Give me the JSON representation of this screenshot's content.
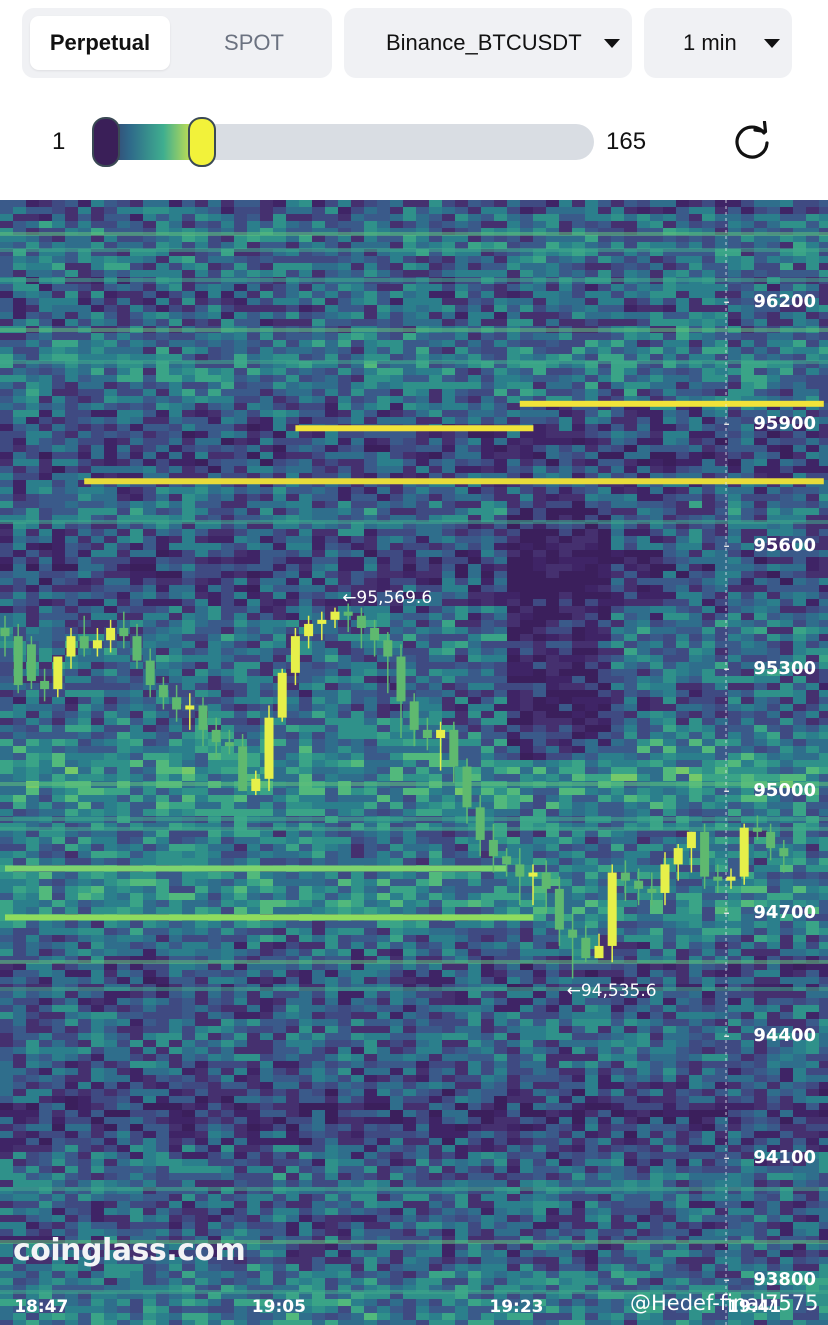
{
  "market_tabs": [
    {
      "label": "Perpetual",
      "selected": true
    },
    {
      "label": "SPOT",
      "selected": false
    }
  ],
  "pair_select": {
    "value": "Binance_BTCUSDT"
  },
  "interval_select": {
    "value": "1 min"
  },
  "range_slider": {
    "min_label": "1",
    "max_label": "165",
    "level": 0.22
  },
  "refresh": {
    "icon": "refresh-icon"
  },
  "chart_data": {
    "type": "heatmap",
    "title": "",
    "y_ticks": [
      "96200",
      "95900",
      "95600",
      "95300",
      "95000",
      "94700",
      "94400",
      "94100",
      "93800"
    ],
    "x_ticks": [
      "18:47",
      "19:05",
      "19:23",
      "19:41"
    ],
    "ylim": [
      93690,
      96450
    ],
    "grid": false,
    "annotations": {
      "high": "←95,569.6",
      "low": "←94,535.6"
    },
    "liquidity_lines": [
      {
        "price": 95950,
        "start": "19:25",
        "end": "19:45",
        "color": "#f1e33a"
      },
      {
        "price": 95890,
        "start": "19:08",
        "end": "19:23",
        "color": "#f1e33a"
      },
      {
        "price": 95760,
        "start": "18:52",
        "end": "19:45",
        "color": "#e8dc3a"
      },
      {
        "price": 94810,
        "start": "18:46",
        "end": "19:21",
        "color": "#7ed46f"
      },
      {
        "price": 94690,
        "start": "18:46",
        "end": "19:23",
        "color": "#8fdc5e"
      }
    ],
    "candles": {
      "times": [
        "18:46",
        "18:47",
        "18:48",
        "18:49",
        "18:50",
        "18:51",
        "18:52",
        "18:53",
        "18:54",
        "18:55",
        "18:56",
        "18:57",
        "18:58",
        "18:59",
        "19:00",
        "19:01",
        "19:02",
        "19:03",
        "19:04",
        "19:05",
        "19:06",
        "19:07",
        "19:08",
        "19:09",
        "19:10",
        "19:11",
        "19:12",
        "19:13",
        "19:14",
        "19:15",
        "19:16",
        "19:17",
        "19:18",
        "19:19",
        "19:20",
        "19:21",
        "19:22",
        "19:23",
        "19:24",
        "19:25",
        "19:26",
        "19:27",
        "19:28",
        "19:29",
        "19:30",
        "19:31",
        "19:32",
        "19:33",
        "19:34",
        "19:35",
        "19:36",
        "19:37",
        "19:38",
        "19:39",
        "19:40",
        "19:41",
        "19:42",
        "19:43",
        "19:44",
        "19:45"
      ],
      "open": [
        95400,
        95380,
        95360,
        95270,
        95250,
        95330,
        95380,
        95350,
        95370,
        95400,
        95380,
        95320,
        95260,
        95230,
        95200,
        95210,
        95150,
        95120,
        95110,
        95000,
        95030,
        95180,
        95290,
        95380,
        95410,
        95420,
        95440,
        95430,
        95400,
        95370,
        95330,
        95220,
        95150,
        95130,
        95150,
        95060,
        94960,
        94880,
        94840,
        94820,
        94790,
        94800,
        94760,
        94660,
        94640,
        94590,
        94620,
        94800,
        94780,
        94760,
        94750,
        94820,
        94860,
        94900,
        94790,
        94780,
        94790,
        94910,
        94900,
        94860
      ],
      "high": [
        95430,
        95410,
        95380,
        95300,
        95330,
        95400,
        95430,
        95400,
        95420,
        95440,
        95410,
        95350,
        95280,
        95260,
        95240,
        95230,
        95180,
        95150,
        95140,
        95050,
        95210,
        95300,
        95400,
        95430,
        95440,
        95450,
        95460,
        95450,
        95420,
        95390,
        95360,
        95240,
        95180,
        95170,
        95170,
        95080,
        94990,
        94920,
        94860,
        94860,
        94820,
        94830,
        94790,
        94700,
        94670,
        94650,
        94820,
        94830,
        94810,
        94800,
        94850,
        94870,
        94900,
        94920,
        94820,
        94810,
        94920,
        94940,
        94920,
        94880
      ],
      "low": [
        95330,
        95240,
        95250,
        95220,
        95230,
        95300,
        95330,
        95330,
        95340,
        95350,
        95300,
        95230,
        95200,
        95170,
        95150,
        95110,
        95080,
        95090,
        95000,
        94990,
        95000,
        95170,
        95260,
        95350,
        95370,
        95400,
        95390,
        95350,
        95330,
        95240,
        95130,
        95110,
        95100,
        95050,
        95020,
        94920,
        94840,
        94800,
        94790,
        94720,
        94720,
        94700,
        94620,
        94540,
        94580,
        94590,
        94580,
        94730,
        94720,
        94720,
        94720,
        94780,
        94800,
        94760,
        94750,
        94760,
        94770,
        94880,
        94830,
        94800
      ],
      "close": [
        95380,
        95260,
        95270,
        95250,
        95330,
        95380,
        95350,
        95370,
        95400,
        95380,
        95320,
        95260,
        95230,
        95200,
        95210,
        95150,
        95120,
        95110,
        95000,
        95030,
        95180,
        95290,
        95380,
        95410,
        95420,
        95440,
        95430,
        95400,
        95370,
        95330,
        95220,
        95150,
        95130,
        95150,
        95060,
        94960,
        94880,
        94840,
        94820,
        94790,
        94800,
        94760,
        94660,
        94640,
        94590,
        94620,
        94800,
        94780,
        94760,
        94750,
        94820,
        94860,
        94900,
        94790,
        94780,
        94790,
        94910,
        94900,
        94860,
        94840
      ]
    }
  },
  "watermark": {
    "brand": "coinglass.com",
    "user_handle": "@Hedef-final7575"
  }
}
